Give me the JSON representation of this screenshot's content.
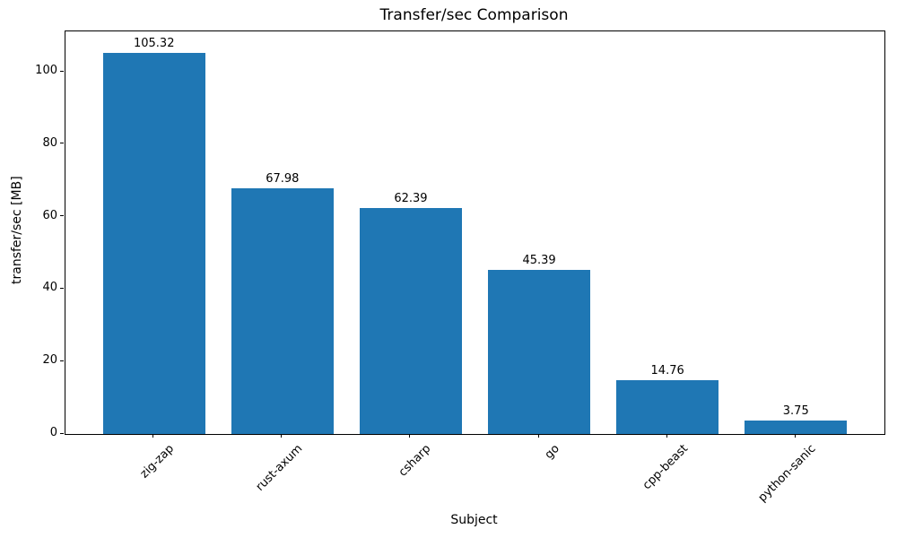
{
  "chart_data": {
    "type": "bar",
    "title": "Transfer/sec Comparison",
    "xlabel": "Subject",
    "ylabel": "transfer/sec [MB]",
    "categories": [
      "zig-zap",
      "rust-axum",
      "csharp",
      "go",
      "cpp-beast",
      "python-sanic"
    ],
    "values": [
      105.32,
      67.98,
      62.39,
      45.39,
      14.76,
      3.75
    ],
    "value_labels": [
      "105.32",
      "67.98",
      "62.39",
      "45.39",
      "14.76",
      "3.75"
    ],
    "yticks": [
      0,
      20,
      40,
      60,
      80,
      100
    ],
    "ylim": [
      0,
      111.2
    ],
    "bar_color": "#1f77b4",
    "text_color": "#000000",
    "background_color": "#ffffff",
    "grid": false,
    "legend": null,
    "x_tick_rotation_deg": 45
  }
}
